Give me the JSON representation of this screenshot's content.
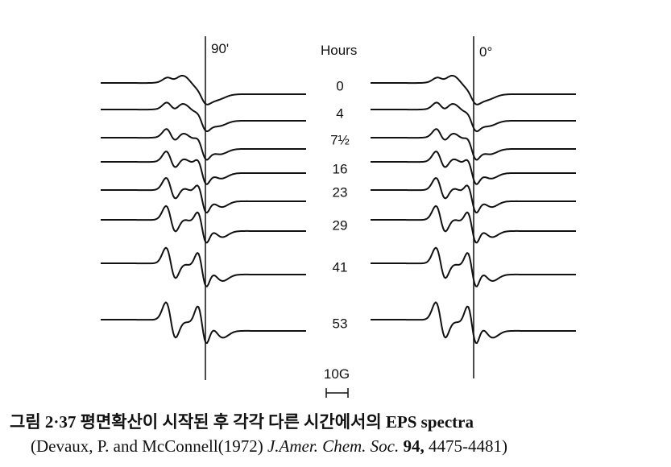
{
  "header": {
    "left_angle": "90'",
    "hours_title": "Hours",
    "right_angle": "0°"
  },
  "hours": [
    "0",
    "4",
    "7½",
    "16",
    "23",
    "29",
    "41",
    "53"
  ],
  "scale_label": "10G",
  "caption": {
    "line1": "그림 2·37  평면확산이 시작된 후 각각 다른 시간에서의 EPS spectra",
    "line2": [
      "(Devaux, P. and McConnell(1972) ",
      "J.Amer. Chem. Soc.",
      " 94,",
      " 4475-4481)"
    ]
  }
}
